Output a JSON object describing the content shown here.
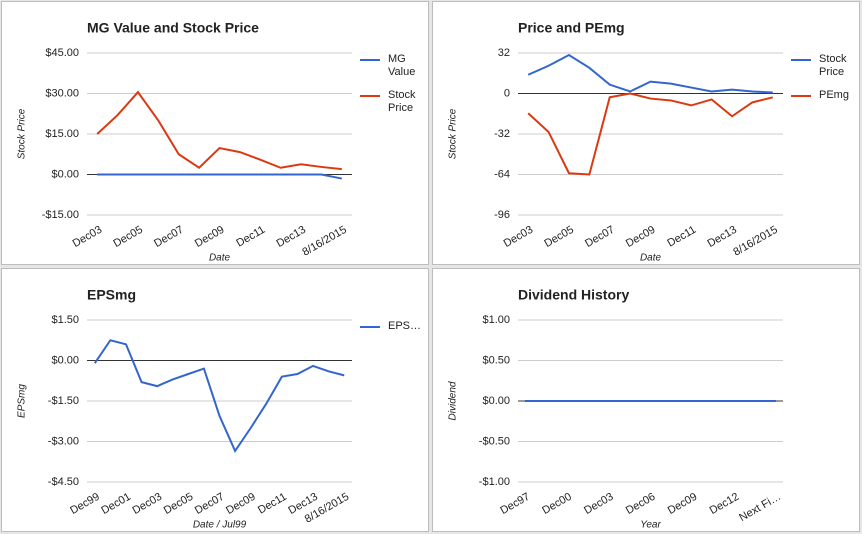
{
  "chart_data": [
    {
      "type": "line",
      "title": "MG Value and Stock Price",
      "xlabel": "Date",
      "ylabel": "Stock Price",
      "categories": [
        "Dec03",
        null,
        "Dec05",
        null,
        "Dec07",
        null,
        "Dec09",
        null,
        "Dec11",
        null,
        "Dec13",
        null,
        "8/16/2015"
      ],
      "series": [
        {
          "name": "MG Value",
          "color": "#3366cc",
          "values": [
            0,
            0,
            0,
            0,
            0,
            0,
            0,
            0,
            0,
            0,
            0,
            0,
            -1.5
          ]
        },
        {
          "name": "Stock Price",
          "color": "#dc3912",
          "values": [
            15,
            22,
            30.5,
            20,
            7.5,
            2.5,
            9.8,
            8.3,
            5.5,
            2.5,
            3.8,
            2.8,
            2
          ]
        }
      ],
      "ylim": [
        -15,
        45
      ],
      "yticks": [
        {
          "value": -15,
          "label": "-$15.00"
        },
        {
          "value": 0,
          "label": "$0.00"
        },
        {
          "value": 15,
          "label": "$15.00"
        },
        {
          "value": 30,
          "label": "$30.00"
        },
        {
          "value": 45,
          "label": "$45.00"
        }
      ],
      "grid": true,
      "legend": "right"
    },
    {
      "type": "line",
      "title": "Price and PEmg",
      "xlabel": "Date",
      "ylabel": "Stock Price",
      "categories": [
        "Dec03",
        null,
        "Dec05",
        null,
        "Dec07",
        null,
        "Dec09",
        null,
        "Dec11",
        null,
        "Dec13",
        null,
        "8/16/2015"
      ],
      "series": [
        {
          "name": "Stock Price",
          "color": "#3366cc",
          "values": [
            14.8,
            21.9,
            30.4,
            20.3,
            7,
            1.6,
            9.4,
            7.8,
            4.7,
            1.6,
            3.1,
            1.6,
            0.8
          ]
        },
        {
          "name": "PEmg",
          "color": "#dc3912",
          "values": [
            -15.6,
            -30.4,
            -63,
            -64,
            -3,
            0,
            -4,
            -5.5,
            -9.4,
            -4.7,
            -18,
            -7,
            -3
          ]
        }
      ],
      "ylim": [
        -96,
        32
      ],
      "yticks": [
        -96,
        -64,
        -32,
        0,
        32
      ],
      "grid": true,
      "legend": "right"
    },
    {
      "type": "line",
      "title": "EPSmg",
      "xlabel": "Date / Jul99",
      "ylabel": "EPSmg",
      "categories": [
        "Dec99",
        null,
        "Dec01",
        null,
        "Dec03",
        null,
        "Dec05",
        null,
        "Dec07",
        null,
        "Dec09",
        null,
        "Dec11",
        null,
        "Dec13",
        null,
        "8/16/2015"
      ],
      "series": [
        {
          "name": "EPS…",
          "color": "#3366cc",
          "values": [
            -0.1,
            0.75,
            0.6,
            -0.8,
            -0.95,
            -0.7,
            -0.5,
            -0.3,
            -2.05,
            -3.35,
            -2.5,
            -1.6,
            -0.6,
            -0.5,
            -0.2,
            -0.4,
            -0.55
          ]
        }
      ],
      "ylim": [
        -4.5,
        1.5
      ],
      "yticks": [
        {
          "value": -4.5,
          "label": "-$4.50"
        },
        {
          "value": -3,
          "label": "-$3.00"
        },
        {
          "value": -1.5,
          "label": "-$1.50"
        },
        {
          "value": 0,
          "label": "$0.00"
        },
        {
          "value": 1.5,
          "label": "$1.50"
        }
      ],
      "grid": true,
      "legend": "right"
    },
    {
      "type": "line",
      "title": "Dividend History",
      "xlabel": "Year",
      "ylabel": "Dividend",
      "categories": [
        "Dec97",
        null,
        null,
        "Dec00",
        null,
        null,
        "Dec03",
        null,
        null,
        "Dec06",
        null,
        null,
        "Dec09",
        null,
        null,
        "Dec12",
        null,
        null,
        "Next Fi…"
      ],
      "series": [
        {
          "color": "#3366cc",
          "values": [
            0,
            0,
            0,
            0,
            0,
            0,
            0,
            0,
            0,
            0,
            0,
            0,
            0,
            0,
            0,
            0,
            0,
            0,
            0
          ]
        }
      ],
      "ylim": [
        -1,
        1
      ],
      "yticks": [
        {
          "value": -1,
          "label": "-$1.00"
        },
        {
          "value": -0.5,
          "label": "-$0.50"
        },
        {
          "value": 0,
          "label": "$0.00"
        },
        {
          "value": 0.5,
          "label": "$0.50"
        },
        {
          "value": 1,
          "label": "$1.00"
        }
      ],
      "grid": true
    }
  ]
}
